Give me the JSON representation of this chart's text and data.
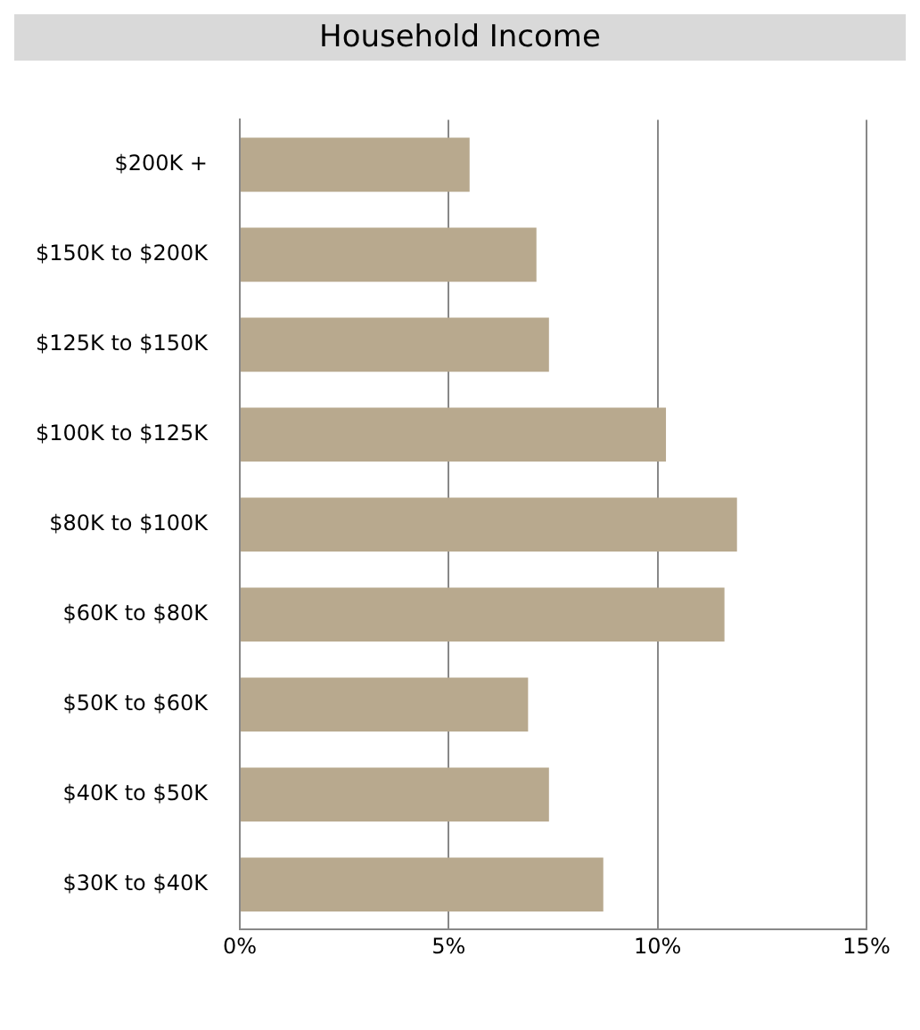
{
  "chart_data": {
    "type": "bar",
    "orientation": "horizontal",
    "title": "Household Income",
    "categories": [
      "$200K +",
      "$150K to $200K",
      "$125K to $150K",
      "$100K to $125K",
      "$80K to $100K",
      "$60K to $80K",
      "$50K to $60K",
      "$40K to $50K",
      "$30K to $40K"
    ],
    "values": [
      5.5,
      7.1,
      7.4,
      10.2,
      11.9,
      11.6,
      6.9,
      7.4,
      8.7
    ],
    "color": "#b8a98e",
    "xlim": [
      0,
      15
    ],
    "xticks": [
      {
        "value": 0,
        "label": "0%"
      },
      {
        "value": 5,
        "label": "5%"
      },
      {
        "value": 10,
        "label": "10%"
      },
      {
        "value": 15,
        "label": "15%"
      }
    ],
    "grid": "x",
    "legend": false
  }
}
